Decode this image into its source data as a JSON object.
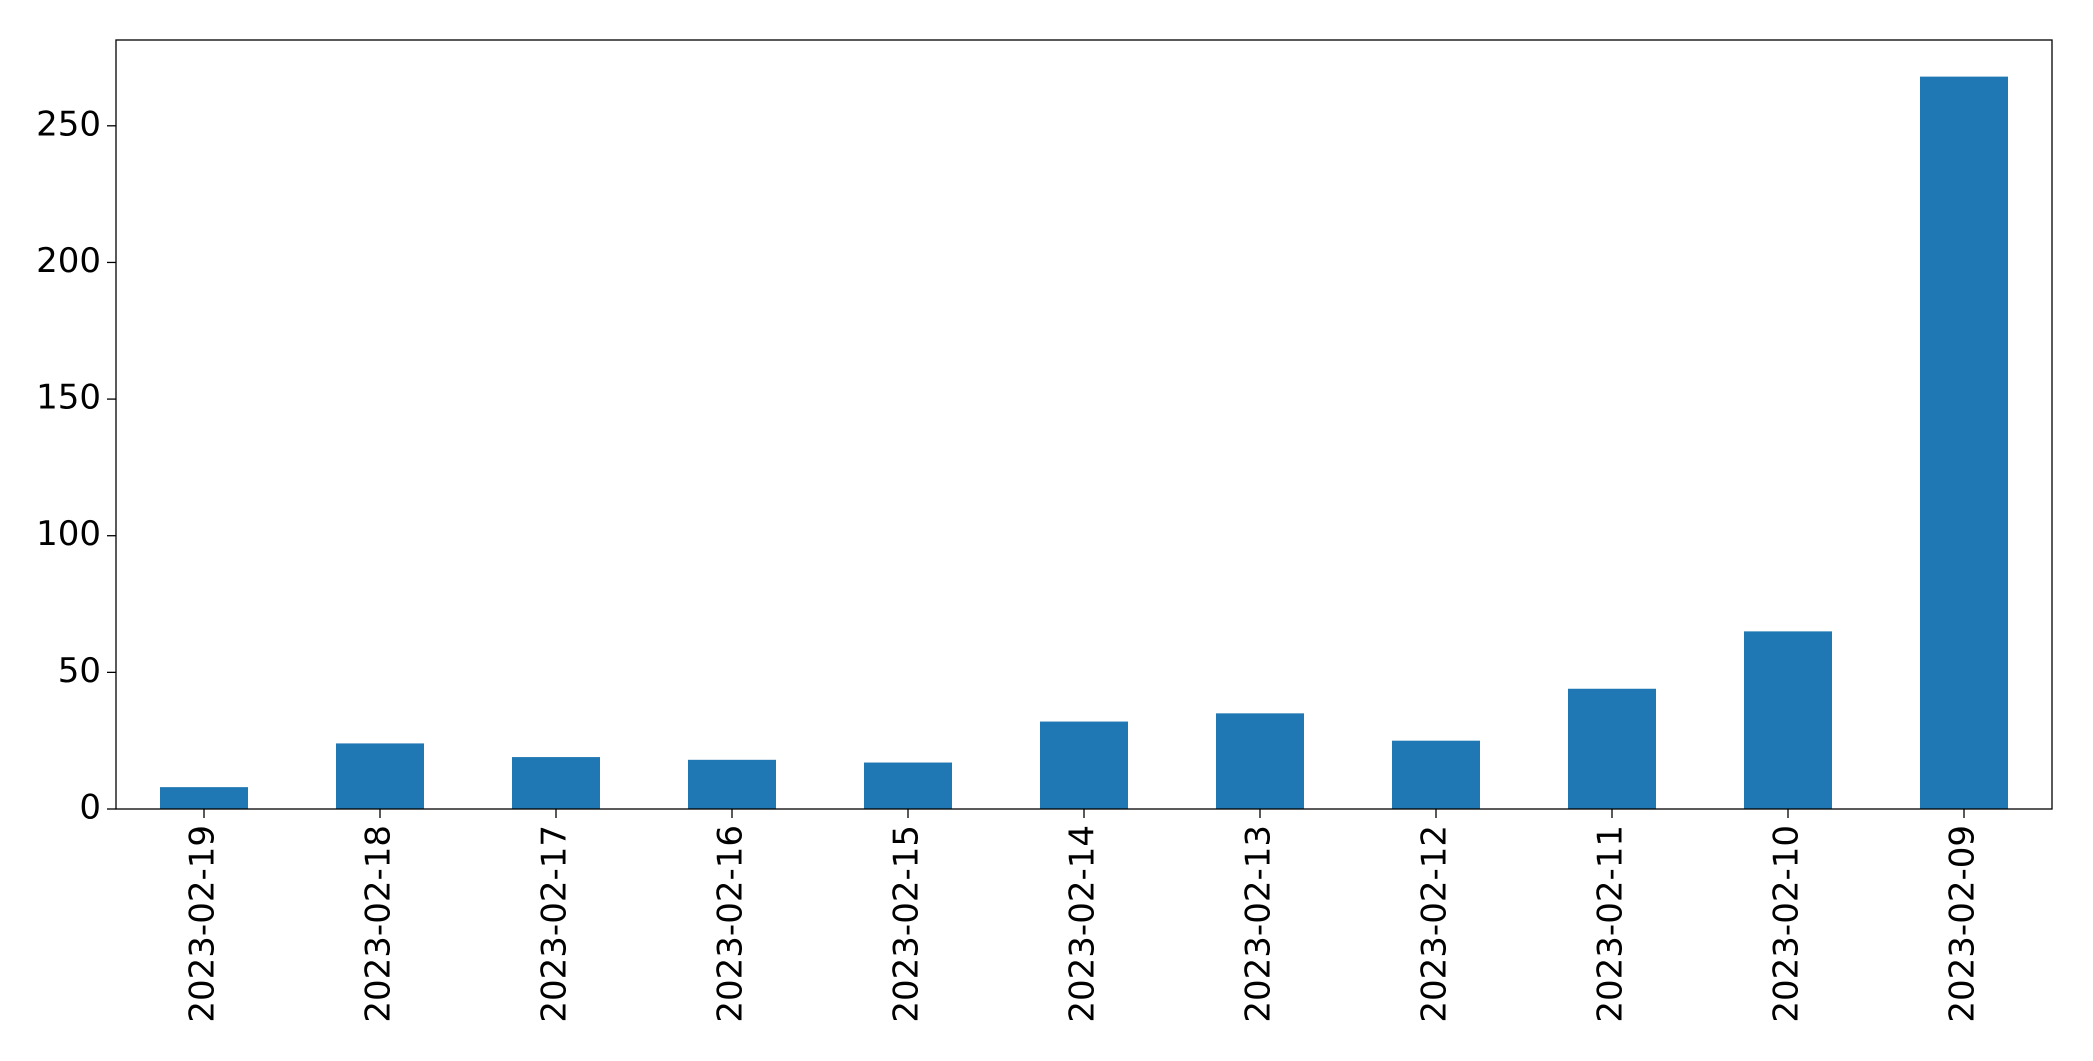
{
  "chart_data": {
    "type": "bar",
    "categories": [
      "2023-02-19",
      "2023-02-18",
      "2023-02-17",
      "2023-02-16",
      "2023-02-15",
      "2023-02-14",
      "2023-02-13",
      "2023-02-12",
      "2023-02-11",
      "2023-02-10",
      "2023-02-09"
    ],
    "values": [
      8,
      24,
      19,
      18,
      17,
      32,
      35,
      25,
      44,
      65,
      268
    ],
    "color": "#1f77b4",
    "ylim": [
      0,
      281.4
    ],
    "yticks": [
      0,
      50,
      100,
      150,
      200,
      250
    ],
    "grid": false
  }
}
